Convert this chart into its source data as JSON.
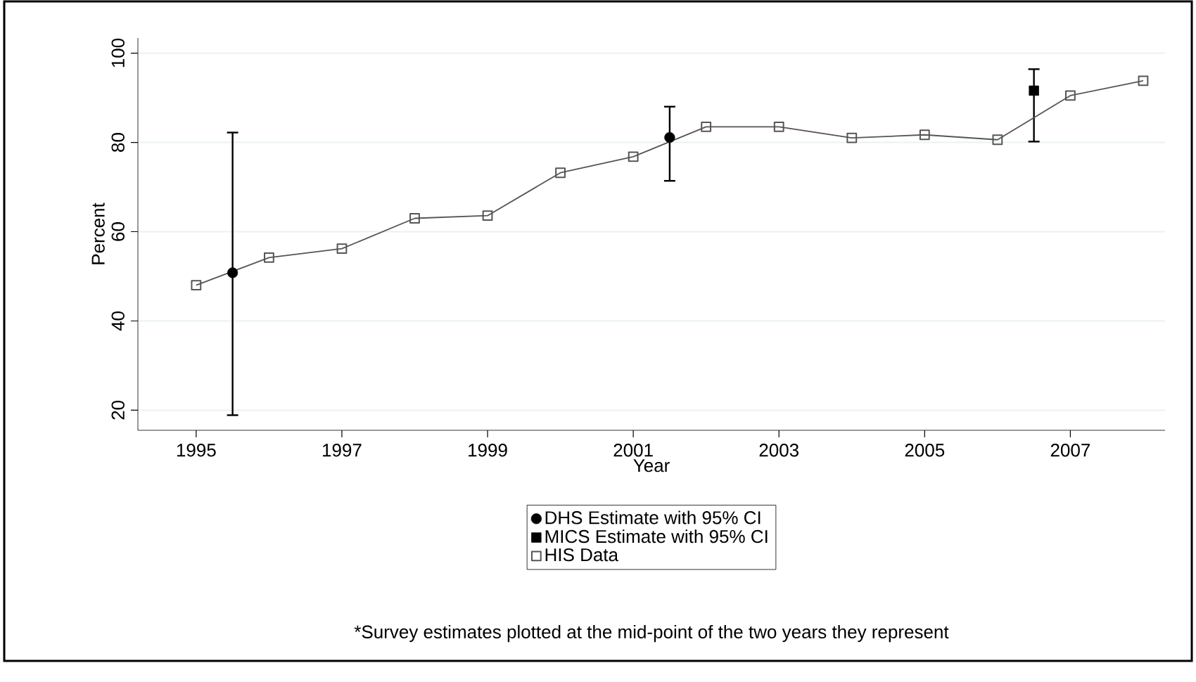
{
  "chart_data": {
    "type": "line",
    "xlabel": "Year",
    "ylabel": "Percent",
    "xlim": [
      1994.2,
      2008.3
    ],
    "ylim": [
      15.5,
      103.4
    ],
    "xticks": [
      1995,
      1997,
      1999,
      2001,
      2003,
      2005,
      2007
    ],
    "yticks": [
      20,
      40,
      60,
      80,
      100
    ],
    "grid": "y",
    "legend": "bottom",
    "series": [
      {
        "name": "DHS Estimate with 95% CI",
        "type": "scatter",
        "marker": "circle",
        "color": "#000000",
        "x": [
          1995.5,
          2001.5
        ],
        "values": [
          50.8,
          81.1
        ],
        "errors": [
          [
            18.7,
            82.4
          ],
          [
            71.2,
            88.2
          ]
        ]
      },
      {
        "name": "MICS Estimate with 95% CI",
        "type": "scatter",
        "marker": "square",
        "color": "#000000",
        "x": [
          2006.5
        ],
        "values": [
          91.6
        ],
        "errors": [
          [
            80.0,
            96.6
          ]
        ]
      },
      {
        "name": "HIS Data",
        "marker": "square",
        "color": "#555555",
        "x": [
          1995,
          1996,
          1997,
          1998,
          1999,
          2000,
          2001,
          2002,
          2003,
          2004,
          2005,
          2006,
          2007,
          2008
        ],
        "values": [
          48.0,
          54.2,
          56.2,
          63.0,
          63.6,
          73.2,
          76.8,
          83.5,
          83.5,
          81.0,
          81.7,
          80.6,
          90.5,
          93.8
        ]
      }
    ],
    "annotations": [
      "*Survey estimates plotted at the mid-point of the two years they represent"
    ]
  }
}
